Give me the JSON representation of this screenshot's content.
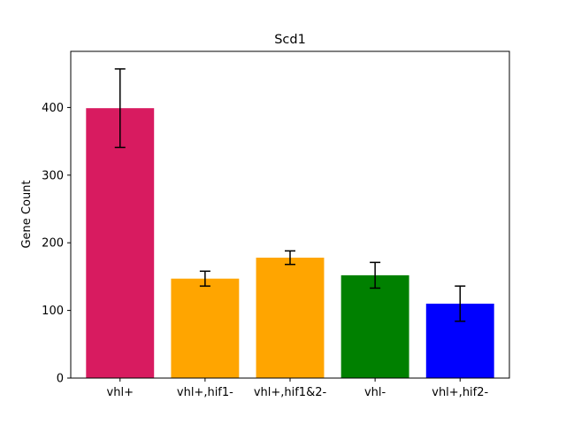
{
  "chart_data": {
    "type": "bar",
    "title": "Scd1",
    "xlabel": "",
    "ylabel": "Gene Count",
    "categories": [
      "vhl+",
      "vhl+,hif1-",
      "vhl+,hif1&2-",
      "vhl-",
      "vhl+,hif2-"
    ],
    "values": [
      399,
      147,
      178,
      152,
      110
    ],
    "errors": [
      58,
      11,
      10,
      19,
      26
    ],
    "colors": [
      "#d81b60",
      "#ffa500",
      "#ffa500",
      "#008000",
      "#0000ff"
    ],
    "ylim": [
      0,
      483
    ],
    "yticks": [
      0,
      100,
      200,
      300,
      400
    ],
    "grid": false,
    "legend": "none"
  }
}
